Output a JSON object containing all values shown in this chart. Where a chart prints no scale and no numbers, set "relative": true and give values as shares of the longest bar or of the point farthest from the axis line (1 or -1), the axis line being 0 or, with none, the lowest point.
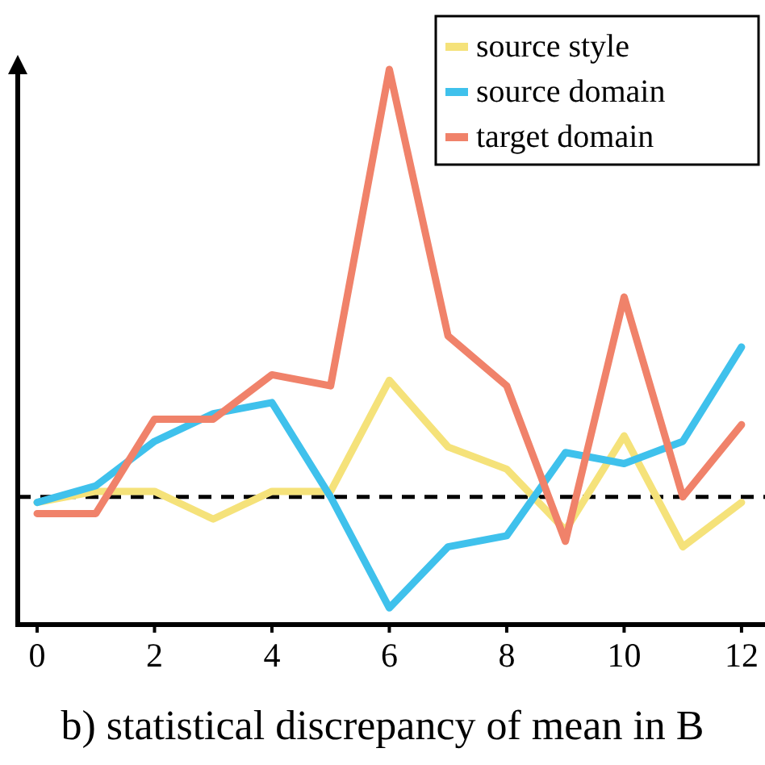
{
  "chart_data": {
    "type": "line",
    "relative": true,
    "xlabel": "b) statistical discrepancy of mean in B",
    "x": [
      0,
      1,
      2,
      3,
      4,
      5,
      6,
      7,
      8,
      9,
      10,
      11,
      12
    ],
    "xlim": [
      -0.33,
      12.4
    ],
    "xticks": [
      0,
      2,
      4,
      6,
      8,
      10,
      12
    ],
    "legend": "top right",
    "grid": false,
    "line_style": "solid",
    "marker": "none",
    "series": [
      {
        "name": "source style",
        "color": "#f5e27a",
        "values": [
          0.22,
          0.24,
          0.24,
          0.19,
          0.24,
          0.24,
          0.44,
          0.32,
          0.28,
          0.17,
          0.34,
          0.14,
          0.22
        ]
      },
      {
        "name": "source domain",
        "color": "#3fc1ec",
        "values": [
          0.22,
          0.25,
          0.33,
          0.38,
          0.4,
          0.23,
          0.03,
          0.14,
          0.16,
          0.31,
          0.29,
          0.33,
          0.5
        ]
      },
      {
        "name": "target domain",
        "color": "#f0826a",
        "values": [
          0.2,
          0.2,
          0.37,
          0.37,
          0.45,
          0.43,
          1,
          0.52,
          0.43,
          0.15,
          0.59,
          0.23,
          0.36
        ]
      }
    ],
    "ref_lines": [
      {
        "axis": "y",
        "value": 0.23,
        "color": "#000000",
        "line_style": "dashed"
      }
    ]
  }
}
